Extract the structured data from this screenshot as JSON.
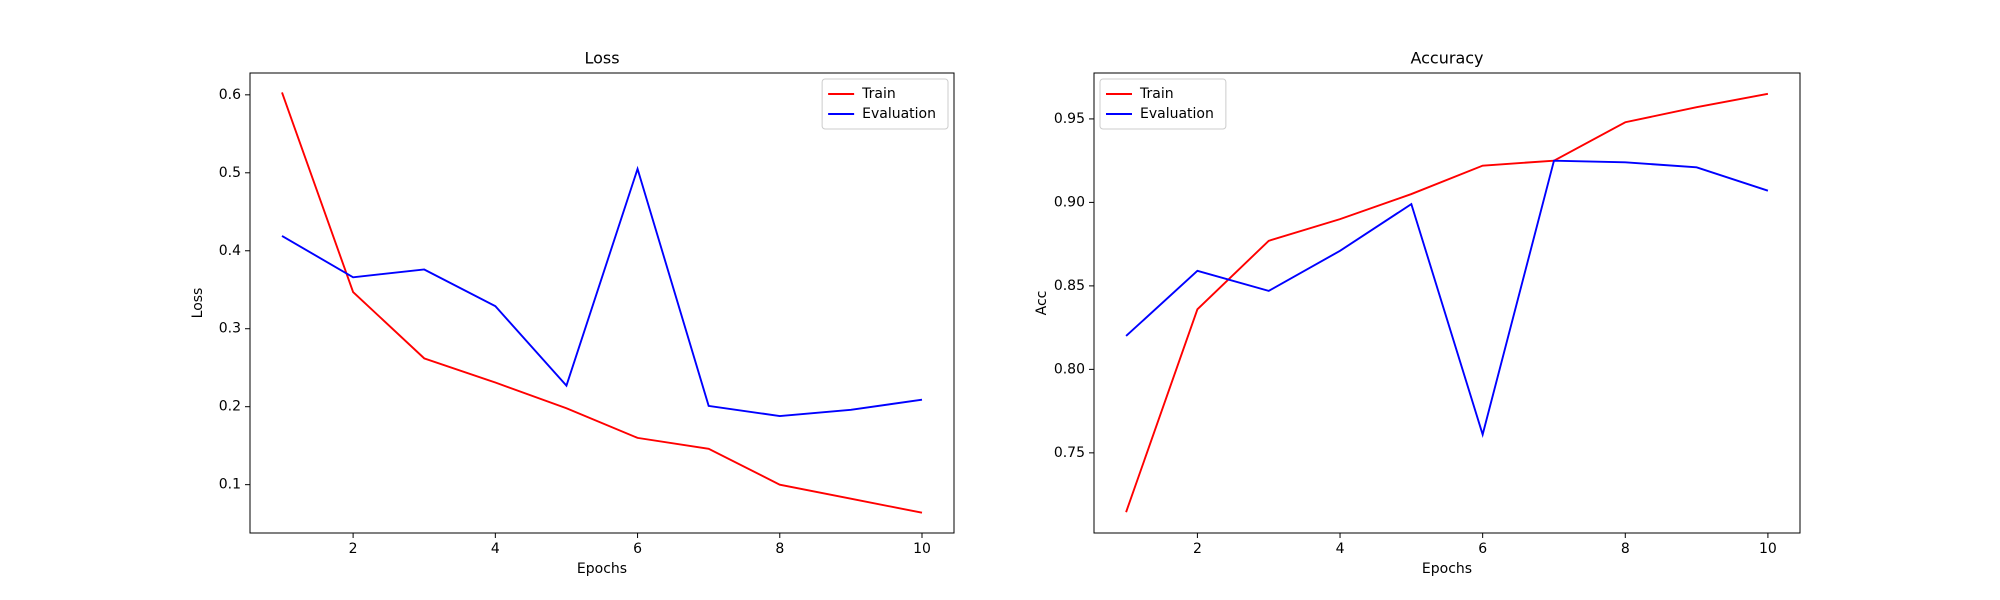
{
  "chart_data": [
    {
      "type": "line",
      "title": "Loss",
      "x_label": "Epochs",
      "y_label": "Loss",
      "x": [
        1,
        2,
        3,
        4,
        5,
        6,
        7,
        8,
        9,
        10
      ],
      "series": [
        {
          "name": "Train",
          "color": "#ff0000",
          "values": [
            0.603,
            0.347,
            0.262,
            0.231,
            0.198,
            0.16,
            0.146,
            0.1,
            0.082,
            0.064
          ]
        },
        {
          "name": "Evaluation",
          "color": "#0000ff",
          "values": [
            0.419,
            0.366,
            0.376,
            0.329,
            0.227,
            0.505,
            0.201,
            0.188,
            0.196,
            0.209
          ]
        }
      ],
      "xlim": [
        0.55,
        10.45
      ],
      "xticks": [
        2,
        4,
        6,
        8,
        10
      ],
      "ylim": [
        0.038,
        0.628
      ],
      "yticks": [
        0.1,
        0.2,
        0.3,
        0.4,
        0.5,
        0.6
      ],
      "legend": "upper right",
      "grid": false
    },
    {
      "type": "line",
      "title": "Accuracy",
      "x_label": "Epochs",
      "y_label": "Acc",
      "x": [
        1,
        2,
        3,
        4,
        5,
        6,
        7,
        8,
        9,
        10
      ],
      "series": [
        {
          "name": "Train",
          "color": "#ff0000",
          "values": [
            0.7145,
            0.836,
            0.877,
            0.89,
            0.905,
            0.922,
            0.925,
            0.948,
            0.957,
            0.965
          ]
        },
        {
          "name": "Evaluation",
          "color": "#0000ff",
          "values": [
            0.82,
            0.859,
            0.847,
            0.871,
            0.899,
            0.761,
            0.925,
            0.924,
            0.921,
            0.907
          ]
        }
      ],
      "xlim": [
        0.55,
        10.45
      ],
      "xticks": [
        2,
        4,
        6,
        8,
        10
      ],
      "ylim": [
        0.702,
        0.9775
      ],
      "yticks": [
        0.75,
        {
          "value": 0.8,
          "label": "0.80"
        },
        0.85,
        {
          "value": 0.9,
          "label": "0.90"
        },
        0.95
      ],
      "legend": "upper left",
      "grid": false
    }
  ]
}
